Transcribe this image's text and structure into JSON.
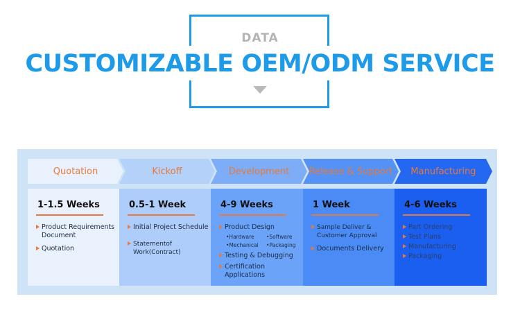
{
  "header": {
    "kicker": "DATA",
    "title": "CUSTOMIZABLE OEM/ODM SERVICE"
  },
  "colors": {
    "accent": "#1e9be8",
    "orange": "#e8793a"
  },
  "stages": [
    {
      "label": "Quotation",
      "duration": "1-1.5 Weeks",
      "items": [
        "Product Requirements Document",
        "Quotation"
      ]
    },
    {
      "label": "Kickoff",
      "duration": "0.5-1 Week",
      "items": [
        "Initial Project Schedule",
        "Statementof Work(Contract)"
      ]
    },
    {
      "label": "Development",
      "duration": "4-9 Weeks",
      "items": [
        "Product Design",
        "Testing & Debugging",
        "Certification Applications"
      ],
      "sub_items": [
        "•Hardware",
        "•Software",
        "•Mechanical",
        "•Packaging"
      ]
    },
    {
      "label": "Release & Support",
      "duration": "1 Week",
      "items": [
        "Sample Deliver & Customer Approval",
        "Documents Delivery"
      ]
    },
    {
      "label": "Manufacturing",
      "duration": "4-6 Weeks",
      "items": [
        "Part Ordering",
        "Test Plans",
        "Manufacturing",
        "Packaging"
      ]
    }
  ]
}
